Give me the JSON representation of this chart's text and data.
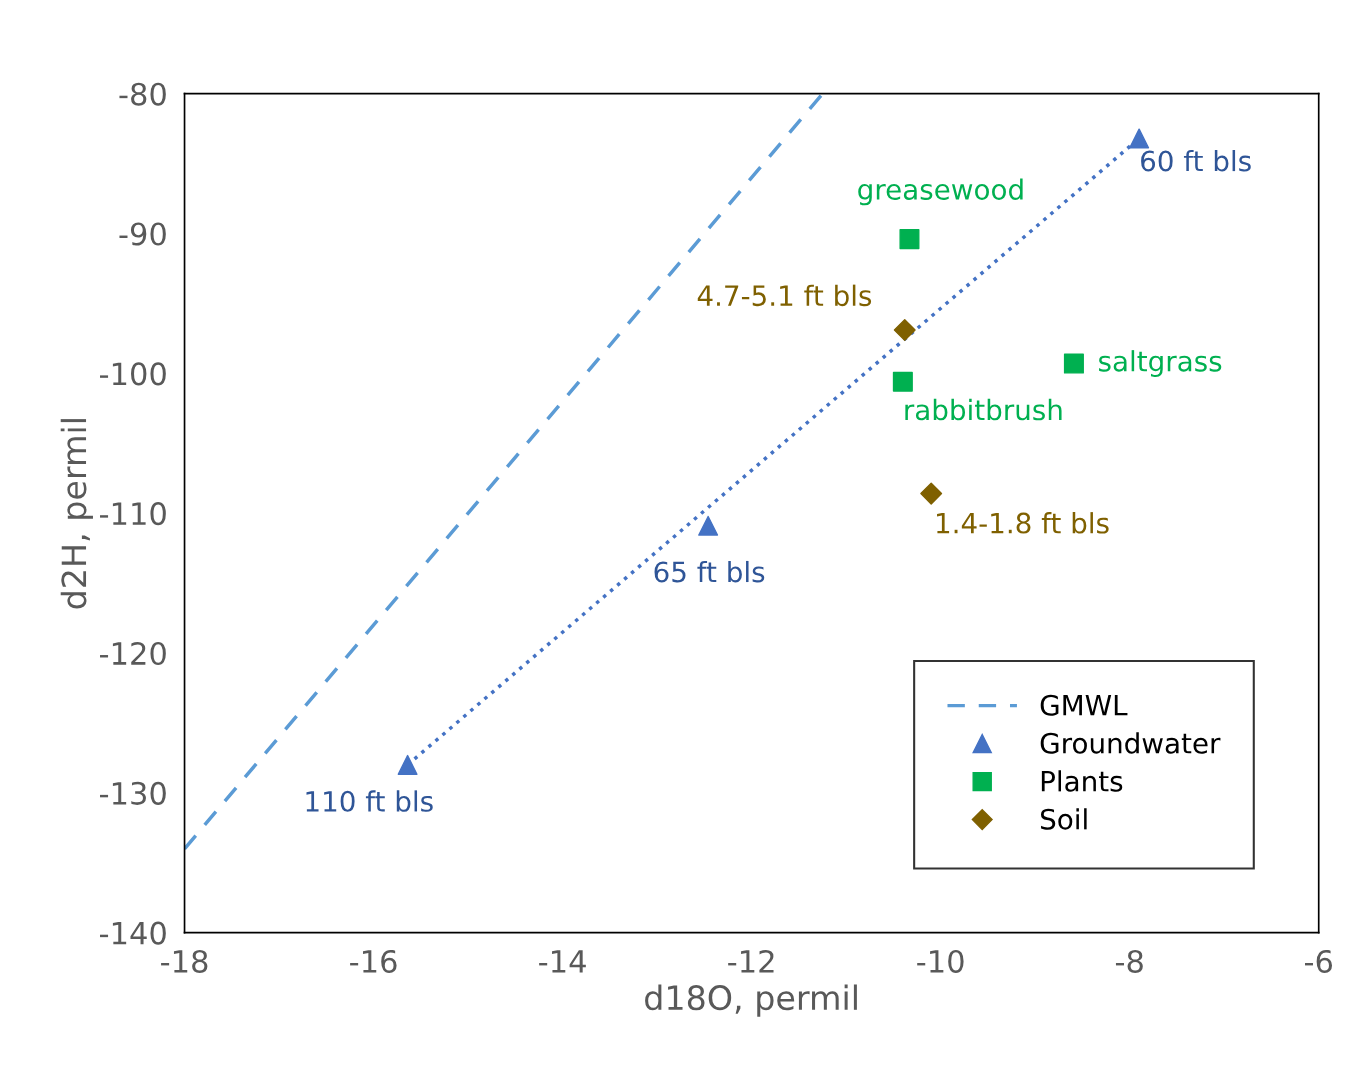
{
  "chart_data": {
    "type": "scatter",
    "xlabel": "d18O, permil",
    "ylabel": "d2H, permil",
    "xlim": [
      -18,
      -6
    ],
    "xticks": [
      -18,
      -16,
      -14,
      -12,
      -10,
      -8,
      -6
    ],
    "ylim": [
      -140,
      -80
    ],
    "yticks": [
      -140,
      -130,
      -120,
      -110,
      -100,
      -90,
      -80
    ],
    "grid": false,
    "legend": "bottom right",
    "series": [
      {
        "name": "GMWL",
        "type": "line",
        "line_style": "dashed",
        "marker": "none",
        "color": "#5b9bd5",
        "x": [
          -18,
          -11.25
        ],
        "values": [
          -134,
          -80
        ]
      },
      {
        "type": "line",
        "line_style": "dotted",
        "marker": "none",
        "color": "#4472c4",
        "x": [
          -15.64,
          -7.9
        ],
        "values": [
          -128.0,
          -83.2
        ]
      },
      {
        "name": "Groundwater",
        "marker": "triangle",
        "color": "#4472c4",
        "x": [
          -7.9,
          -12.46,
          -15.64
        ],
        "values": [
          -83.2,
          -110.9,
          -128.0
        ]
      },
      {
        "name": "Plants",
        "marker": "square",
        "color": "#00b050",
        "x": [
          -10.33,
          -8.59,
          -10.4
        ],
        "values": [
          -90.4,
          -99.3,
          -100.6
        ]
      },
      {
        "name": "Soil",
        "marker": "diamond",
        "color": "#7f6000",
        "x": [
          -10.38,
          -10.1
        ],
        "values": [
          -96.9,
          -108.6
        ]
      }
    ],
    "annotations": [
      {
        "text": "60 ft bls",
        "x": -7.9,
        "y": -83.2
      },
      {
        "text": "65 ft bls",
        "x": -12.46,
        "y": -110.9
      },
      {
        "text": "110 ft bls",
        "x": -15.64,
        "y": -128.0
      },
      {
        "text": "greasewood",
        "x": -10.33,
        "y": -90.4
      },
      {
        "text": "saltgrass",
        "x": -8.59,
        "y": -99.3
      },
      {
        "text": "rabbitbrush",
        "x": -10.4,
        "y": -100.6
      },
      {
        "text": "4.7-5.1 ft bls",
        "x": -10.38,
        "y": -96.9
      },
      {
        "text": "1.4-1.8 ft bls",
        "x": -10.1,
        "y": -108.6
      }
    ]
  }
}
